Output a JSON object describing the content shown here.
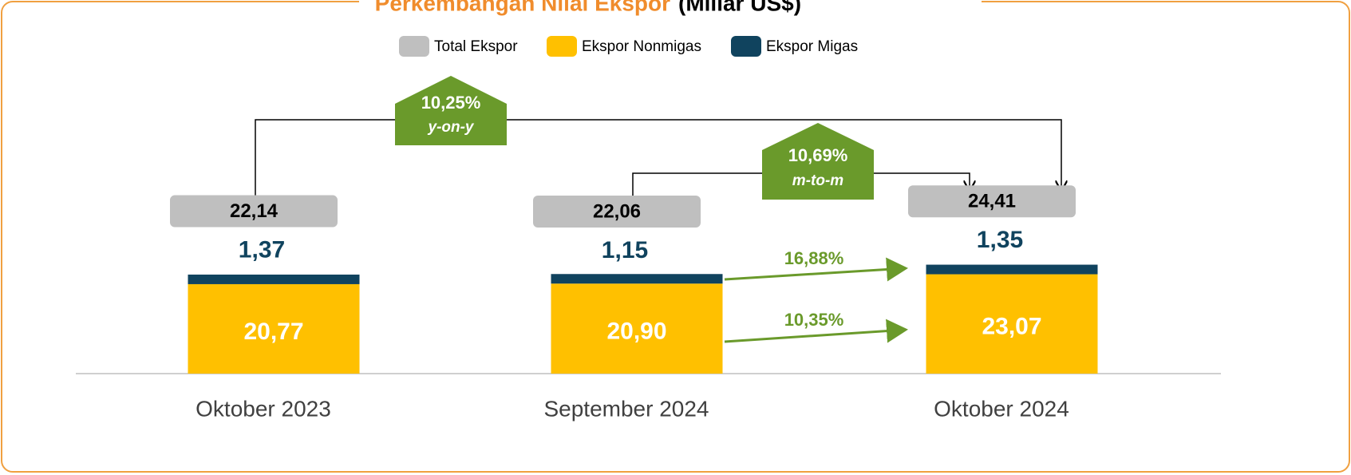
{
  "chart_data": {
    "type": "bar",
    "title": "Perkembangan Nilai Ekspor",
    "subtitle": "(Miliar US$)",
    "categories": [
      "Oktober 2023",
      "September 2024",
      "Oktober 2024"
    ],
    "series": [
      {
        "name": "Total Ekspor",
        "color": "#bfbfbf",
        "values": [
          22.14,
          22.06,
          24.41
        ],
        "value_labels": [
          "22,14",
          "22,06",
          "24,41"
        ]
      },
      {
        "name": "Ekspor Nonmigas",
        "color": "#ffc000",
        "values": [
          20.77,
          20.9,
          23.07
        ],
        "value_labels": [
          "20,77",
          "20,90",
          "23,07"
        ]
      },
      {
        "name": "Ekspor Migas",
        "color": "#10435e",
        "values": [
          1.37,
          1.15,
          1.35
        ],
        "value_labels": [
          "1,37",
          "1,15",
          "1,35"
        ]
      }
    ],
    "ylim": [
      0,
      38
    ],
    "annotations": [
      {
        "text": "10,25%",
        "subtext": "y-on-y"
      },
      {
        "text": "10,69%",
        "subtext": "m-to-m"
      },
      {
        "text": "16,88%"
      },
      {
        "text": "10,35%"
      }
    ]
  }
}
